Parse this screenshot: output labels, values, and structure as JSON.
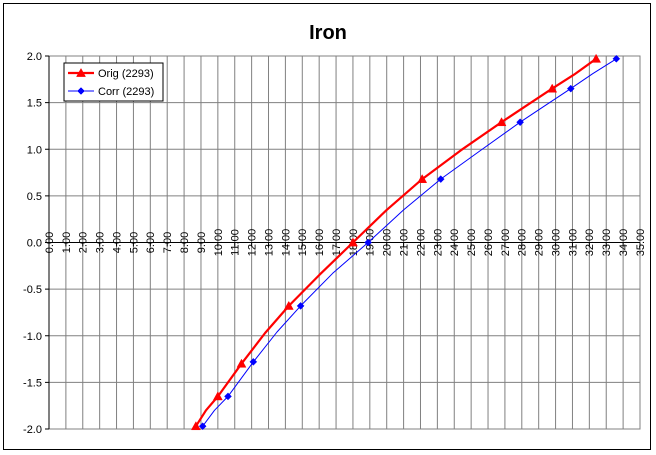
{
  "chart_data": {
    "type": "line",
    "title": "Iron",
    "xlabel": "",
    "ylabel": "",
    "xlim": [
      0,
      35
    ],
    "ylim": [
      -2.0,
      2.0
    ],
    "x_ticks": [
      "0.00",
      "1.00",
      "2.00",
      "3.00",
      "4.00",
      "5.00",
      "6.00",
      "7.00",
      "8.00",
      "9.00",
      "10.00",
      "11.00",
      "12.00",
      "13.00",
      "14.00",
      "15.00",
      "16.00",
      "17.00",
      "18.00",
      "19.00",
      "20.00",
      "21.00",
      "22.00",
      "23.00",
      "24.00",
      "25.00",
      "26.00",
      "27.00",
      "28.00",
      "29.00",
      "30.00",
      "31.00",
      "32.00",
      "33.00",
      "34.00",
      "35.00"
    ],
    "y_ticks": [
      "2.0",
      "1.5",
      "1.0",
      "0.5",
      "0.0",
      "-0.5",
      "-1.0",
      "-1.5",
      "-2.0"
    ],
    "grid": true,
    "legend_position": "top-left",
    "series": [
      {
        "name": "Orig (2293)",
        "color": "#ff0000",
        "marker": "triangle",
        "points": [
          [
            8.7,
            -1.97
          ],
          [
            10.0,
            -1.65
          ],
          [
            11.4,
            -1.3
          ],
          [
            14.2,
            -0.68
          ],
          [
            18.0,
            0.0
          ],
          [
            22.1,
            0.68
          ],
          [
            26.8,
            1.29
          ],
          [
            29.8,
            1.65
          ],
          [
            32.4,
            1.97
          ]
        ],
        "line": [
          [
            8.7,
            -1.97
          ],
          [
            9.3,
            -1.8
          ],
          [
            10.0,
            -1.65
          ],
          [
            11.4,
            -1.3
          ],
          [
            12.8,
            -0.97
          ],
          [
            14.2,
            -0.68
          ],
          [
            16.0,
            -0.35
          ],
          [
            18.0,
            0.0
          ],
          [
            20.0,
            0.35
          ],
          [
            22.1,
            0.68
          ],
          [
            24.4,
            0.99
          ],
          [
            26.8,
            1.29
          ],
          [
            28.2,
            1.46
          ],
          [
            29.8,
            1.65
          ],
          [
            31.1,
            1.8
          ],
          [
            32.4,
            1.97
          ]
        ]
      },
      {
        "name": "Corr (2293)",
        "color": "#0000ff",
        "marker": "diamond",
        "points": [
          [
            9.1,
            -1.97
          ],
          [
            10.6,
            -1.65
          ],
          [
            12.1,
            -1.28
          ],
          [
            14.9,
            -0.68
          ],
          [
            18.9,
            0.0
          ],
          [
            23.2,
            0.68
          ],
          [
            27.9,
            1.29
          ],
          [
            30.9,
            1.65
          ],
          [
            33.6,
            1.97
          ]
        ],
        "line": [
          [
            9.1,
            -1.97
          ],
          [
            9.8,
            -1.8
          ],
          [
            10.6,
            -1.65
          ],
          [
            12.1,
            -1.28
          ],
          [
            13.5,
            -0.96
          ],
          [
            14.9,
            -0.68
          ],
          [
            16.8,
            -0.33
          ],
          [
            18.9,
            0.0
          ],
          [
            21.0,
            0.35
          ],
          [
            23.2,
            0.68
          ],
          [
            25.5,
            0.98
          ],
          [
            27.9,
            1.29
          ],
          [
            29.3,
            1.46
          ],
          [
            30.9,
            1.65
          ],
          [
            32.2,
            1.81
          ],
          [
            33.6,
            1.97
          ]
        ]
      }
    ]
  },
  "colors": {
    "frame": "#000000",
    "grid": "#808080",
    "axis": "#000000"
  }
}
